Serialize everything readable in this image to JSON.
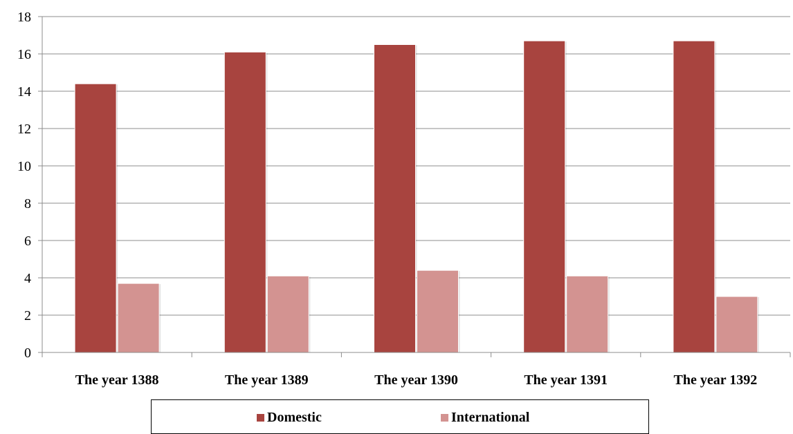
{
  "chart_data": {
    "type": "bar",
    "title": "",
    "xlabel": "",
    "ylabel": "",
    "categories": [
      "The year 1388",
      "The year 1389",
      "The year 1390",
      "The year 1391",
      "The year 1392"
    ],
    "series": [
      {
        "name": "Domestic",
        "color": "#A8443F",
        "values": [
          14.4,
          16.1,
          16.5,
          16.7,
          16.7
        ]
      },
      {
        "name": "International",
        "color": "#D39391",
        "values": [
          3.7,
          4.1,
          4.4,
          4.1,
          3.0
        ]
      }
    ],
    "ylim": [
      0,
      18
    ],
    "yticks": [
      "0",
      "2",
      "4",
      "6",
      "8",
      "10",
      "12",
      "14",
      "16",
      "18"
    ],
    "grid": true,
    "legend_position": "bottom"
  }
}
